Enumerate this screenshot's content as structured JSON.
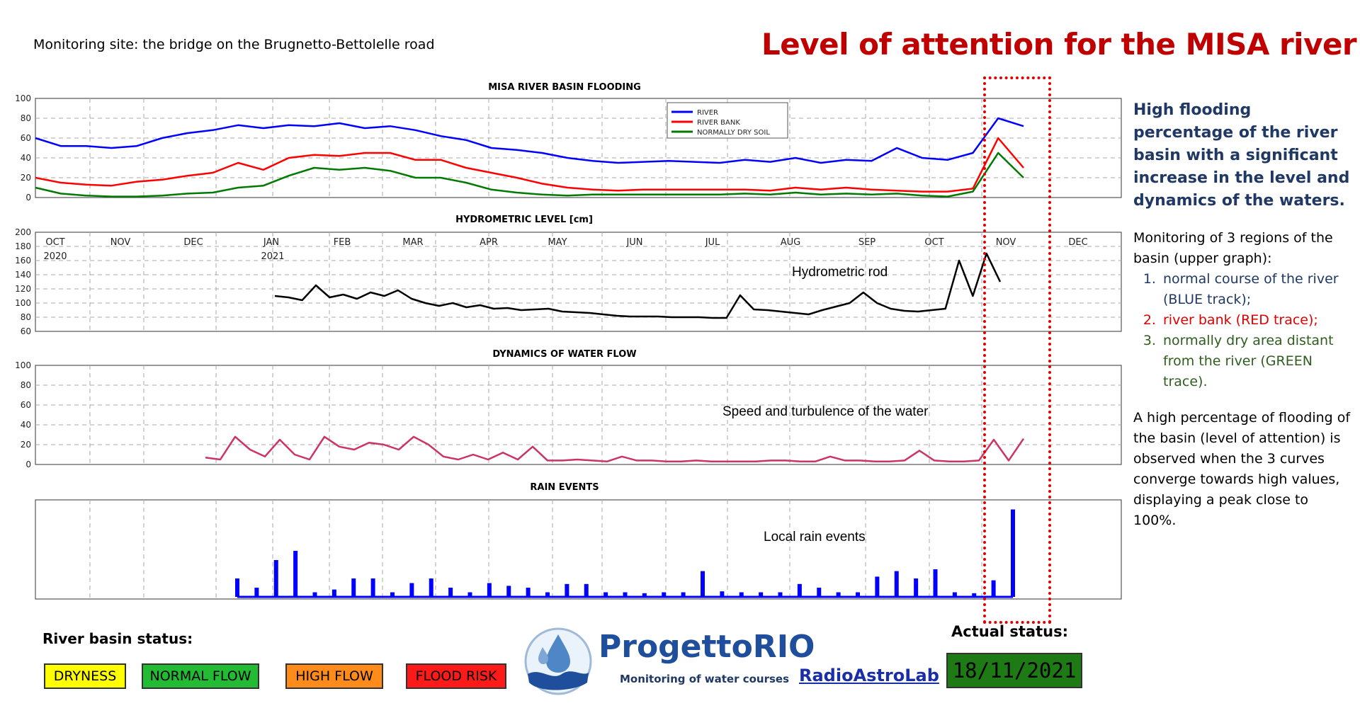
{
  "header": {
    "site": "Monitoring site: the bridge on the Brugnetto-Bettolelle road",
    "title": "Level of attention for the MISA river"
  },
  "annotations": {
    "hydrometric_rod": "Hydrometric rod",
    "speed": "Speed and turbulence of the water",
    "rain": "Local rain events"
  },
  "sidebar": {
    "heading": "High flooding percentage of the river basin with a significant increase in the level and dynamics of the waters.",
    "intro": "Monitoring of 3 regions of the basin (upper graph):",
    "items": [
      {
        "text": "normal course of the river (BLUE track);",
        "color": "#1f3864"
      },
      {
        "text": "river bank (RED trace);",
        "color": "#e00000"
      },
      {
        "text": "normally dry area distant from the river (GREEN trace).",
        "color": "#2e5e1e"
      }
    ],
    "note": "A high percentage of flooding of the basin (level of attention) is observed when the 3 curves converge towards high values, displaying a peak close to 100%."
  },
  "footer": {
    "status_label": "River basin status:",
    "statuses": [
      {
        "label": "DRYNESS",
        "color": "#ffff00"
      },
      {
        "label": "NORMAL FLOW",
        "color": "#22bb33"
      },
      {
        "label": "HIGH FLOW",
        "color": "#ff8c1a"
      },
      {
        "label": "FLOOD RISK",
        "color": "#ff1a1a"
      }
    ],
    "actual_label": "Actual status:",
    "actual_date": "18/11/2021",
    "actual_color": "#1d7a14",
    "logo_name": "ProgettoRIO",
    "logo_sub": "Monitoring of water courses",
    "astro": "RadioAstroLab"
  },
  "chart_data": [
    {
      "type": "line",
      "title": "MISA RIVER BASIN FLOODING",
      "ylim": [
        0,
        100
      ],
      "yticks": [
        0,
        20,
        40,
        60,
        80,
        100
      ],
      "grid": true,
      "legend": "top-right",
      "series": [
        {
          "name": "RIVER",
          "color": "#0000ff",
          "values": [
            60,
            52,
            52,
            50,
            52,
            60,
            65,
            68,
            73,
            70,
            73,
            72,
            75,
            70,
            72,
            68,
            62,
            58,
            50,
            48,
            45,
            40,
            37,
            35,
            36,
            37,
            36,
            35,
            38,
            36,
            40,
            35,
            38,
            37,
            50,
            40,
            38,
            45,
            80,
            72
          ]
        },
        {
          "name": "RIVER BANK",
          "color": "#ff0000",
          "values": [
            20,
            15,
            13,
            12,
            16,
            18,
            22,
            25,
            35,
            28,
            40,
            43,
            42,
            45,
            45,
            38,
            38,
            30,
            25,
            20,
            14,
            10,
            8,
            7,
            8,
            8,
            8,
            8,
            8,
            7,
            10,
            8,
            10,
            8,
            7,
            6,
            6,
            9,
            60,
            30
          ]
        },
        {
          "name": "NORMALLY DRY SOIL",
          "color": "#007a00",
          "values": [
            10,
            4,
            2,
            1,
            1,
            2,
            4,
            5,
            10,
            12,
            22,
            30,
            28,
            30,
            27,
            20,
            20,
            15,
            8,
            5,
            3,
            2,
            3,
            3,
            3,
            3,
            3,
            3,
            4,
            3,
            5,
            3,
            4,
            3,
            4,
            2,
            1,
            6,
            45,
            20
          ]
        }
      ]
    },
    {
      "type": "line",
      "title": "HYDROMETRIC LEVEL [cm]",
      "ylim": [
        60,
        200
      ],
      "yticks": [
        60,
        80,
        100,
        120,
        140,
        160,
        180,
        200
      ],
      "months": [
        "OCT",
        "NOV",
        "DEC",
        "JAN",
        "FEB",
        "MAR",
        "APR",
        "MAY",
        "JUN",
        "JUL",
        "AUG",
        "SEP",
        "OCT",
        "NOV",
        "DEC"
      ],
      "years": [
        "2020",
        "2021"
      ],
      "series": [
        {
          "name": "",
          "color": "#000000",
          "values": [
            110,
            108,
            104,
            125,
            108,
            112,
            106,
            115,
            110,
            118,
            106,
            100,
            96,
            100,
            94,
            97,
            92,
            93,
            90,
            91,
            92,
            88,
            87,
            86,
            84,
            82,
            81,
            81,
            81,
            80,
            80,
            80,
            79,
            79,
            111,
            91,
            90,
            88,
            86,
            84,
            90,
            95,
            100,
            115,
            100,
            92,
            89,
            88,
            90,
            92,
            160,
            110,
            170,
            130
          ]
        }
      ]
    },
    {
      "type": "line",
      "title": "DYNAMICS OF WATER FLOW",
      "ylim": [
        0,
        100
      ],
      "yticks": [
        0,
        20,
        40,
        60,
        80,
        100
      ],
      "series": [
        {
          "name": "",
          "color": "#cc3366",
          "values": [
            7,
            5,
            28,
            15,
            8,
            25,
            10,
            5,
            28,
            18,
            15,
            22,
            20,
            15,
            28,
            20,
            8,
            5,
            10,
            5,
            12,
            5,
            18,
            4,
            4,
            5,
            4,
            3,
            8,
            4,
            4,
            3,
            3,
            4,
            3,
            3,
            3,
            3,
            4,
            4,
            3,
            3,
            8,
            4,
            4,
            3,
            3,
            4,
            14,
            4,
            3,
            3,
            4,
            25,
            4,
            26
          ]
        }
      ]
    },
    {
      "type": "bar",
      "title": "RAIN EVENTS",
      "series": [
        {
          "name": "",
          "color": "#0000ff",
          "values": [
            0.2,
            0.1,
            0.4,
            0.5,
            0.05,
            0.08,
            0.2,
            0.2,
            0.05,
            0.15,
            0.2,
            0.1,
            0.05,
            0.15,
            0.12,
            0.1,
            0.05,
            0.14,
            0.14,
            0.05,
            0.05,
            0.04,
            0.05,
            0.05,
            0.28,
            0.06,
            0.05,
            0.05,
            0.05,
            0.14,
            0.1,
            0.05,
            0.05,
            0.22,
            0.28,
            0.2,
            0.3,
            0.05,
            0.04,
            0.18,
            0.95
          ]
        }
      ]
    }
  ]
}
